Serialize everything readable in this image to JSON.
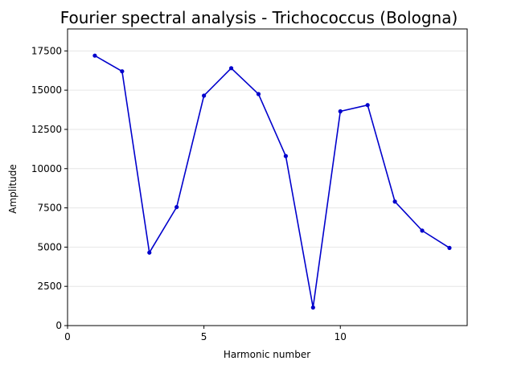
{
  "colors": {
    "line": "#0000cc",
    "grid": "#e6e6e6",
    "axis": "#000000",
    "background": "#ffffff"
  },
  "chart_data": {
    "type": "line",
    "title": "Fourier spectral analysis - Trichococcus (Bologna)",
    "xlabel": "Harmonic number",
    "ylabel": "Amplitude",
    "xlim": [
      0,
      14.65
    ],
    "ylim": [
      0,
      18900
    ],
    "xticks": [
      0,
      5,
      10
    ],
    "yticks": [
      0,
      2500,
      5000,
      7500,
      10000,
      12500,
      15000,
      17500
    ],
    "grid": "horizontal",
    "marker": "dot",
    "x": [
      1,
      2,
      3,
      4,
      5,
      6,
      7,
      8,
      9,
      10,
      11,
      12,
      13,
      14
    ],
    "values": [
      17200,
      16200,
      4650,
      7550,
      14650,
      16400,
      14750,
      10800,
      1150,
      13650,
      14050,
      7900,
      6050,
      4950
    ]
  }
}
